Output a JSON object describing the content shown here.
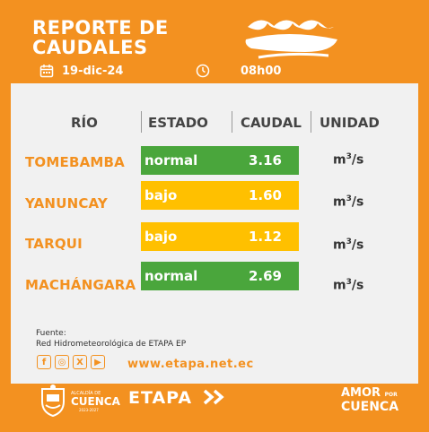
{
  "header": {
    "title_line1": "REPORTE DE",
    "title_line2": "CAUDALES",
    "date": "19-dic-24",
    "time": "08h00",
    "calendar_icon": "calendar-icon",
    "clock_icon": "clock-icon",
    "waves_icon": "waves-icon"
  },
  "table": {
    "headers": {
      "rio": "RÍO",
      "estado": "ESTADO",
      "caudal": "CAUDAL",
      "unidad": "UNIDAD"
    },
    "rows": [
      {
        "rio": "TOMEBAMBA",
        "estado": "normal",
        "caudal": "3.16",
        "unidad": "m",
        "unidad_exp": "3",
        "unidad_tail": "/s",
        "color": "#4aa63c"
      },
      {
        "rio": "YANUNCAY",
        "estado": "bajo",
        "caudal": "1.60",
        "unidad": "m",
        "unidad_exp": "3",
        "unidad_tail": "/s",
        "color": "#ffc000"
      },
      {
        "rio": "TARQUI",
        "estado": "bajo",
        "caudal": "1.12",
        "unidad": "m",
        "unidad_exp": "3",
        "unidad_tail": "/s",
        "color": "#ffc000"
      },
      {
        "rio": "MACHÁNGARA",
        "estado": "normal",
        "caudal": "2.69",
        "unidad": "m",
        "unidad_exp": "3",
        "unidad_tail": "/s",
        "color": "#4aa63c"
      }
    ]
  },
  "source": {
    "label": "Fuente:",
    "text": "Red Hidrometeorológica de ETAPA EP"
  },
  "social": {
    "icons": [
      "facebook-icon",
      "instagram-icon",
      "x-icon",
      "youtube-icon"
    ],
    "glyphs": [
      "f",
      "◎",
      "X",
      "▶"
    ],
    "website": "www.etapa.net.ec"
  },
  "footer": {
    "alcaldia": "ALCALDÍA DE",
    "cuenca": "CUENCA",
    "years": "2023-2027",
    "etapa": "ETAPA",
    "amor_line1": "AMOR",
    "amor_por": "POR",
    "amor_line2": "CUENCA"
  },
  "colors": {
    "brand_orange": "#f39120",
    "normal_green": "#4aa63c",
    "low_yellow": "#ffc000",
    "card_bg": "#f1f1f1"
  }
}
